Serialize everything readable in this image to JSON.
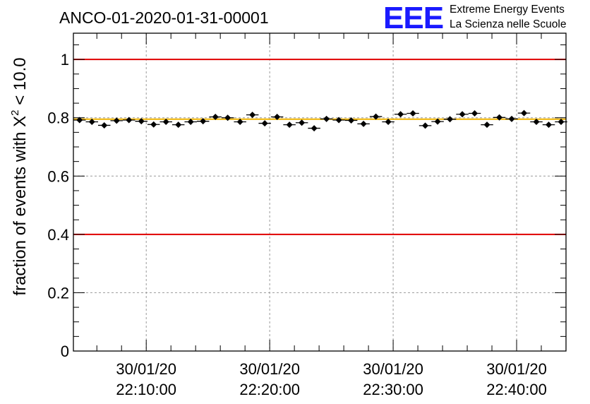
{
  "chart_data": {
    "type": "scatter",
    "title": "ANCO-01-2020-01-31-00001",
    "xlabel": "",
    "ylabel_main": "fraction of events with X",
    "ylabel_sup": "2",
    "ylabel_tail": " < 10.0",
    "x_unit": "minutes since 30/01/20 22:00:00",
    "xlim": [
      4.1,
      44.0
    ],
    "ylim": [
      0,
      1.09
    ],
    "grid": true,
    "y_ticks": [
      {
        "value": 0,
        "label": "0"
      },
      {
        "value": 0.2,
        "label": "0.2"
      },
      {
        "value": 0.4,
        "label": "0.4"
      },
      {
        "value": 0.6,
        "label": "0.6"
      },
      {
        "value": 0.8,
        "label": "0.8"
      },
      {
        "value": 1.0,
        "label": "1"
      }
    ],
    "x_ticks": [
      {
        "value": 10,
        "date": "30/01/20",
        "time": "22:10:00"
      },
      {
        "value": 20,
        "date": "30/01/20",
        "time": "22:20:00"
      },
      {
        "value": 30,
        "date": "30/01/20",
        "time": "22:30:00"
      },
      {
        "value": 40,
        "date": "30/01/20",
        "time": "22:40:00"
      }
    ],
    "reference_lines": [
      {
        "name": "upper-limit",
        "value": 1.0,
        "color": "#e00000"
      },
      {
        "name": "lower-limit",
        "value": 0.4,
        "color": "#e00000"
      },
      {
        "name": "mean",
        "value": 0.795,
        "color": "#f0b400"
      }
    ],
    "x_half_width": 0.5,
    "series": [
      {
        "name": "fraction",
        "x": [
          4.6,
          5.6,
          6.6,
          7.6,
          8.6,
          9.6,
          10.6,
          11.6,
          12.6,
          13.6,
          14.6,
          15.6,
          16.6,
          17.6,
          18.6,
          19.6,
          20.6,
          21.6,
          22.6,
          23.6,
          24.6,
          25.6,
          26.6,
          27.6,
          28.6,
          29.6,
          30.6,
          31.6,
          32.6,
          33.6,
          34.6,
          35.6,
          36.6,
          37.6,
          38.6,
          39.6,
          40.6,
          41.6,
          42.6,
          43.6
        ],
        "values": [
          0.792,
          0.786,
          0.774,
          0.79,
          0.792,
          0.788,
          0.777,
          0.786,
          0.776,
          0.786,
          0.788,
          0.803,
          0.8,
          0.786,
          0.81,
          0.781,
          0.803,
          0.776,
          0.783,
          0.764,
          0.796,
          0.792,
          0.791,
          0.779,
          0.804,
          0.786,
          0.812,
          0.815,
          0.773,
          0.787,
          0.795,
          0.812,
          0.815,
          0.776,
          0.801,
          0.796,
          0.816,
          0.786,
          0.776,
          0.786
        ],
        "errors": [
          0.006,
          0.006,
          0.006,
          0.006,
          0.006,
          0.006,
          0.006,
          0.006,
          0.006,
          0.006,
          0.006,
          0.006,
          0.006,
          0.006,
          0.006,
          0.006,
          0.006,
          0.006,
          0.006,
          0.006,
          0.006,
          0.006,
          0.006,
          0.006,
          0.006,
          0.006,
          0.006,
          0.006,
          0.006,
          0.006,
          0.006,
          0.006,
          0.006,
          0.006,
          0.006,
          0.006,
          0.006,
          0.006,
          0.006,
          0.006
        ],
        "color": "#000000"
      }
    ]
  },
  "logo": {
    "letters": "EEE",
    "line1": "Extreme Energy Events",
    "line2": "La Scienza nelle Scuole",
    "color": "#1a1aff"
  },
  "colors": {
    "grid": "#999999",
    "axis": "#000000"
  }
}
